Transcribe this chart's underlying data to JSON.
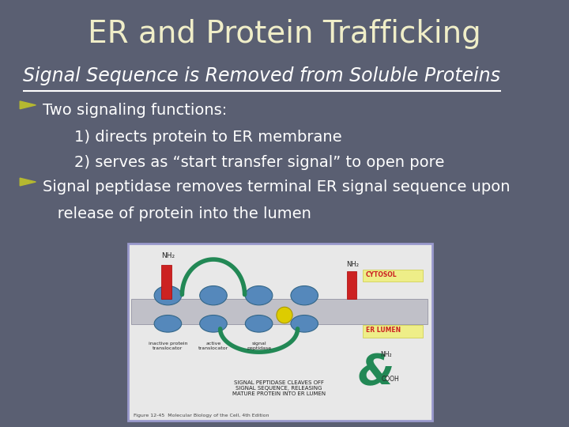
{
  "title": "ER and Protein Trafficking",
  "subtitle": "Signal Sequence is Removed from Soluble Proteins",
  "bg_color": "#5a5f72",
  "title_color": "#f0eec8",
  "subtitle_color": "#ffffff",
  "bullet_color": "#b5b830",
  "text_color": "#ffffff",
  "bullet1_main": "Two signaling functions:",
  "bullet1_sub1": "1) directs protein to ER membrane",
  "bullet1_sub2": "2) serves as “start transfer signal” to open pore",
  "bullet2_line1": "Signal peptidase removes terminal ER signal sequence upon",
  "bullet2_line2": "   release of protein into the lumen",
  "title_fontsize": 28,
  "subtitle_fontsize": 17,
  "body_fontsize": 14,
  "image_border_color": "#9999cc",
  "image_face_color": "#e8e8e8"
}
